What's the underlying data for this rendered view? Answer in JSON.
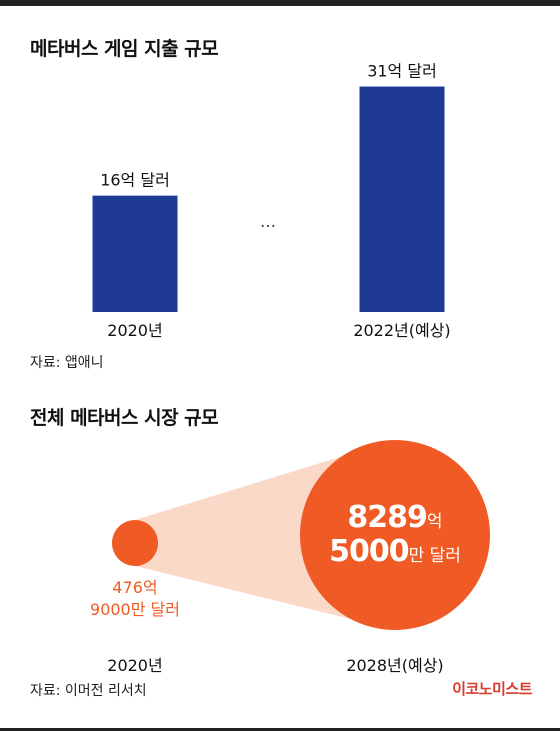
{
  "colors": {
    "bar": "#1f3a93",
    "orange": "#f05a24",
    "cone": "#fbd9c8",
    "brand": "#d93b2b"
  },
  "section1": {
    "title": "메타버스 게임 지출 규모",
    "source": "자료: 앱애니",
    "ellipsis": "…"
  },
  "section2": {
    "title": "전체 메타버스 시장 규모",
    "source": "자료: 이머전 리서치",
    "small": {
      "category": "2020년",
      "line1": "476억",
      "line2": "9000만 달러"
    },
    "big": {
      "category": "2028년(예상)",
      "num1": "8289",
      "unit1": "억",
      "num2": "5000",
      "unit2": "만 달러"
    }
  },
  "chart_data": [
    {
      "type": "bar",
      "title": "메타버스 게임 지출 규모",
      "categories": [
        "2020년",
        "2022년(예상)"
      ],
      "values": [
        16,
        31
      ],
      "value_labels": [
        "16억 달러",
        "31억 달러"
      ],
      "unit": "억 달러",
      "ylim": [
        0,
        33
      ],
      "grid": false
    },
    {
      "type": "bubble",
      "title": "전체 메타버스 시장 규모",
      "categories": [
        "2020년",
        "2028년(예상)"
      ],
      "values": [
        476.9,
        8289.5
      ],
      "value_labels": [
        "476억 9000만 달러",
        "8289억 5000만 달러"
      ],
      "unit": "억 달러"
    }
  ],
  "brand": "이코노미스트"
}
